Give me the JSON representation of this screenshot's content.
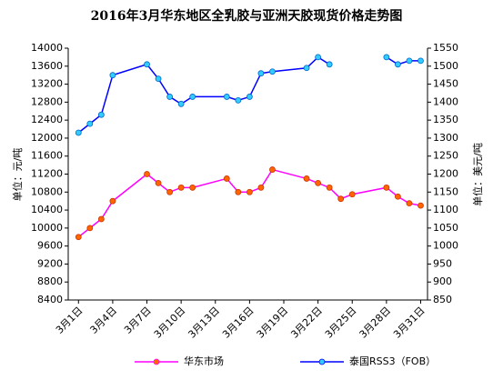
{
  "chart_data": {
    "type": "line",
    "title": "2016年3月华东地区全乳胶与亚洲天胶现货价格走势图",
    "ylabel": "单位：元/吨",
    "y2label": "单位：美元/吨",
    "x": [
      1,
      2,
      3,
      4,
      7,
      8,
      9,
      10,
      11,
      14,
      15,
      16,
      17,
      18,
      21,
      22,
      23,
      24,
      25,
      28,
      29,
      30,
      31
    ],
    "xlim": [
      0.1,
      31.6
    ],
    "xticks": [
      {
        "value": 1,
        "label": "3月1日"
      },
      {
        "value": 4,
        "label": "3月4日"
      },
      {
        "value": 7,
        "label": "3月7日"
      },
      {
        "value": 10,
        "label": "3月10日"
      },
      {
        "value": 13,
        "label": "3月13日"
      },
      {
        "value": 16,
        "label": "3月16日"
      },
      {
        "value": 19,
        "label": "3月19日"
      },
      {
        "value": 22,
        "label": "3月22日"
      },
      {
        "value": 25,
        "label": "3月25日"
      },
      {
        "value": 28,
        "label": "3月28日"
      },
      {
        "value": 31,
        "label": "3月31日"
      }
    ],
    "ylim": [
      8400,
      14000
    ],
    "yticks": [
      8400,
      8800,
      9200,
      9600,
      10000,
      10400,
      10800,
      11200,
      11600,
      12000,
      12400,
      12800,
      13200,
      13600,
      14000
    ],
    "y2lim": [
      850,
      1550
    ],
    "y2ticks": [
      850,
      900,
      950,
      1000,
      1050,
      1100,
      1150,
      1200,
      1250,
      1300,
      1350,
      1400,
      1450,
      1500,
      1550
    ],
    "legend": "bottom",
    "series": [
      {
        "name": "华东市场",
        "color": "#ff00ff",
        "marker_color": "#ff6600",
        "values": [
          9800,
          10000,
          10200,
          10600,
          11200,
          11000,
          10800,
          10900,
          10900,
          11100,
          10800,
          10800,
          10900,
          11300,
          11100,
          11000,
          10900,
          10650,
          10750,
          10900,
          10700,
          10550,
          10500
        ]
      },
      {
        "name": "泰国RSS3（FOB）",
        "color": "#0000ff",
        "marker_color": "#33ccff",
        "axis": "y2",
        "values": [
          1315,
          1340,
          1365,
          1475,
          1505,
          1465,
          1415,
          1395,
          1415,
          1415,
          1405,
          1415,
          1480,
          1485,
          1495,
          1525,
          1505,
          null,
          null,
          1525,
          1505,
          1515,
          1515
        ]
      }
    ]
  }
}
